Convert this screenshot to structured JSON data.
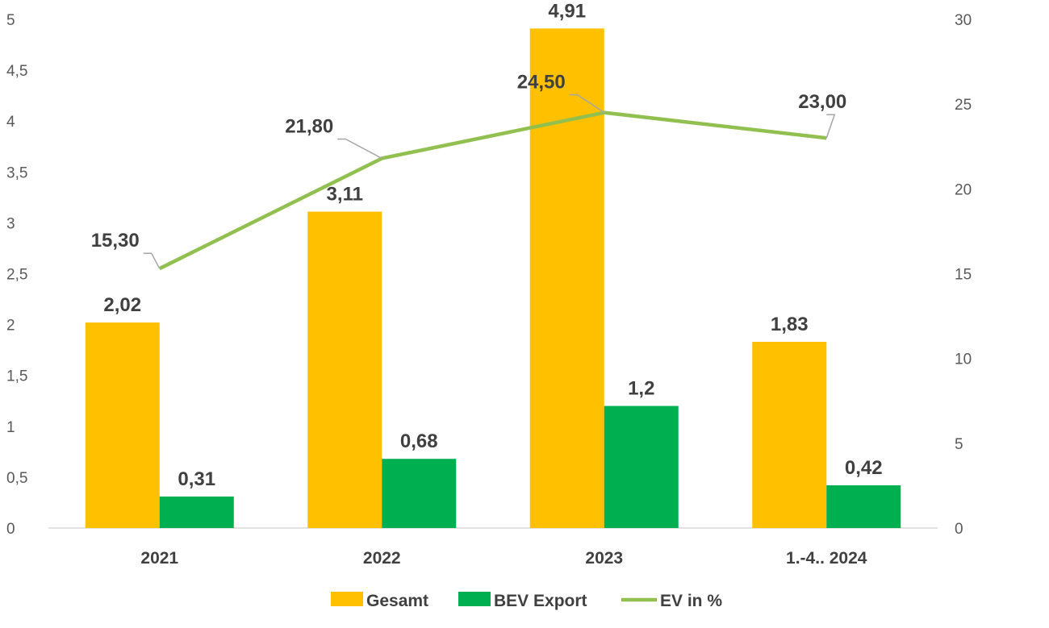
{
  "chart_data": {
    "type": "bar",
    "categories": [
      "2021",
      "2022",
      "2023",
      "1.-4.. 2024"
    ],
    "series": [
      {
        "name": "Gesamt",
        "kind": "bar",
        "axis": "left",
        "color": "#FFC000",
        "values": [
          2.02,
          3.11,
          4.91,
          1.83
        ],
        "labels": [
          "2,02",
          "3,11",
          "4,91",
          "1,83"
        ]
      },
      {
        "name": "BEV Export",
        "kind": "bar",
        "axis": "left",
        "color": "#00B050",
        "values": [
          0.31,
          0.68,
          1.2,
          0.42
        ],
        "labels": [
          "0,31",
          "0,68",
          "1,2",
          "0,42"
        ]
      },
      {
        "name": "EV in %",
        "kind": "line",
        "axis": "right",
        "color": "#92C050",
        "values": [
          15.3,
          21.8,
          24.5,
          23.0
        ],
        "labels": [
          "15,30",
          "21,80",
          "24,50",
          "23,00"
        ]
      }
    ],
    "left_axis": {
      "ylim": [
        0,
        5
      ],
      "ticks": [
        "0",
        "0,5",
        "1",
        "1,5",
        "2",
        "2,5",
        "3",
        "3,5",
        "4",
        "4,5",
        "5"
      ]
    },
    "right_axis": {
      "ylim": [
        0,
        30
      ],
      "ticks": [
        "0",
        "5",
        "10",
        "15",
        "20",
        "25",
        "30"
      ]
    },
    "title": "",
    "xlabel": "",
    "ylabel": "",
    "grid": false,
    "legend": "bottom-center"
  }
}
